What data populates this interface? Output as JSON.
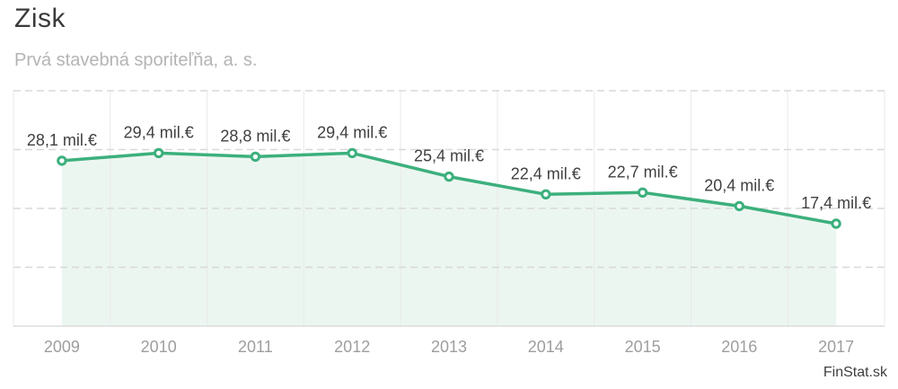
{
  "title": "Zisk",
  "subtitle": "Prvá stavebná sporiteľňa, a. s.",
  "watermark": "FinStat.sk",
  "colors": {
    "line": "#3cb07d",
    "area": "#ecf6f1",
    "marker_fill": "#ffffff",
    "grid_dashed": "#d8d8d8",
    "grid_vertical": "#e9e9e9",
    "axis_line": "#dcdcdc",
    "data_label": "#404040",
    "x_label": "#9e9e9e",
    "title_color": "#3a3a3a",
    "subtitle_color": "#b4b4b4",
    "watermark_color": "#3e3e3e"
  },
  "chart_data": {
    "type": "line",
    "title": "Zisk",
    "subtitle": "Prvá stavebná sporiteľňa, a. s.",
    "categories": [
      "2009",
      "2010",
      "2011",
      "2012",
      "2013",
      "2014",
      "2015",
      "2016",
      "2017"
    ],
    "values": [
      28.1,
      29.4,
      28.8,
      29.4,
      25.4,
      22.4,
      22.7,
      20.4,
      17.4
    ],
    "data_labels": [
      "28,1 mil.€",
      "29,4 mil.€",
      "28,8 mil.€",
      "29,4 mil.€",
      "25,4 mil.€",
      "22,4 mil.€",
      "22,7 mil.€",
      "20,4 mil.€",
      "17,4 mil.€"
    ],
    "unit": "mil.€",
    "xlabel": "",
    "ylabel": "",
    "ylim": [
      0,
      40
    ],
    "yticks": [
      10,
      20,
      30,
      40
    ],
    "y_tick_labels_visible": false,
    "grid": "horizontal-dashed + vertical-column-separators",
    "legend": "none",
    "area_fill": true,
    "markers": "open-circle"
  }
}
